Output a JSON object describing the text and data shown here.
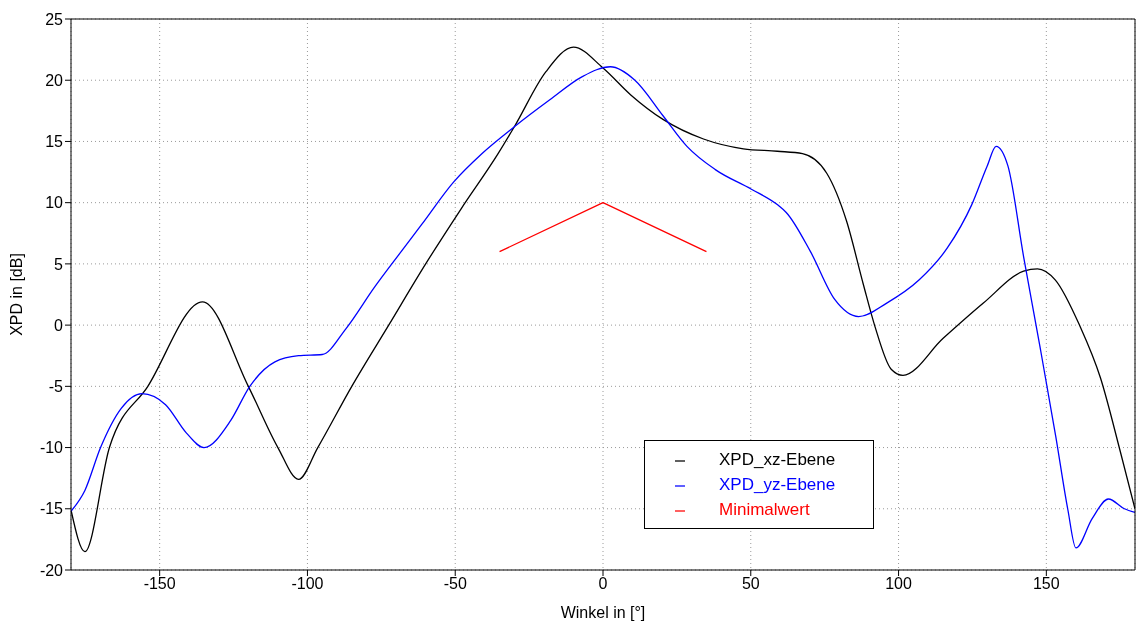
{
  "chart_data": {
    "type": "line",
    "xlabel": "Winkel in [°]",
    "ylabel": "XPD in [dB]",
    "xlim": [
      -180,
      180
    ],
    "xticks": [
      -150,
      -100,
      -50,
      0,
      50,
      100,
      150
    ],
    "ylim": [
      -20,
      25
    ],
    "yticks": [
      -20,
      -15,
      -10,
      -5,
      0,
      5,
      10,
      15,
      20,
      25
    ],
    "grid": true,
    "legend": "bottom right",
    "line_style": "solid",
    "marker": "none",
    "series": [
      {
        "name": "XPD_xz-Ebene",
        "color": "#000000",
        "x": [
          -180,
          -175.3,
          -167,
          -154,
          -135.5,
          -120,
          -110,
          -103,
          -96.5,
          -85,
          -72.5,
          -60,
          -48,
          -35.5,
          -30,
          -19.3,
          -10,
          0,
          9.4,
          20.3,
          34,
          47.5,
          59,
          67.5,
          75.7,
          82.4,
          88,
          92,
          97.5,
          101.5,
          115,
          128.7,
          142.3,
          147,
          153,
          161.4,
          168.3,
          175,
          180
        ],
        "values": [
          -15.1,
          -18.5,
          -10,
          -5,
          1.9,
          -5,
          -10,
          -12.6,
          -10,
          -5,
          0,
          5,
          9.5,
          14,
          16.2,
          20.7,
          22.7,
          21,
          18.8,
          16.8,
          15.2,
          14.4,
          14.2,
          14,
          12.4,
          8.5,
          3.4,
          -0.1,
          -3.6,
          -4.1,
          -1.1,
          1.8,
          4.4,
          4.6,
          3.7,
          -0.1,
          -4.3,
          -10.3,
          -15
        ]
      },
      {
        "name": "XPD_yz-Ebene",
        "color": "#0000ff",
        "x": [
          -180,
          -175.3,
          -170,
          -163,
          -156,
          -148,
          -141,
          -135,
          -126,
          -119.5,
          -111,
          -103,
          -95,
          -87,
          -77.3,
          -68.3,
          -61.4,
          -50.5,
          -41,
          -30,
          -18,
          -7,
          2.5,
          10.8,
          20.3,
          28.4,
          38,
          50.2,
          59.2,
          62,
          70.2,
          78.4,
          86.5,
          96,
          107,
          116.5,
          124.7,
          130,
          133,
          137,
          142.3,
          147.8,
          153.2,
          157.3,
          160,
          165.5,
          171,
          176.4,
          180
        ],
        "values": [
          -15.2,
          -13.5,
          -10,
          -6.8,
          -5.6,
          -6.5,
          -8.8,
          -10,
          -7.8,
          -5,
          -3,
          -2.5,
          -2.4,
          -0.3,
          3.1,
          6,
          8.2,
          11.7,
          14,
          16.2,
          18.4,
          20.3,
          21.1,
          20,
          17.1,
          14.6,
          12.7,
          11.1,
          9.8,
          9.2,
          6,
          2.1,
          0.7,
          1.8,
          3.7,
          6.3,
          9.8,
          13,
          14.6,
          13,
          5.6,
          -1.7,
          -9.1,
          -15.1,
          -18.2,
          -15.8,
          -14.2,
          -15,
          -15.3
        ]
      },
      {
        "name": "Minimalwert",
        "color": "#ff0000",
        "x": [
          -35,
          0,
          35
        ],
        "values": [
          6,
          10,
          6
        ]
      }
    ]
  }
}
